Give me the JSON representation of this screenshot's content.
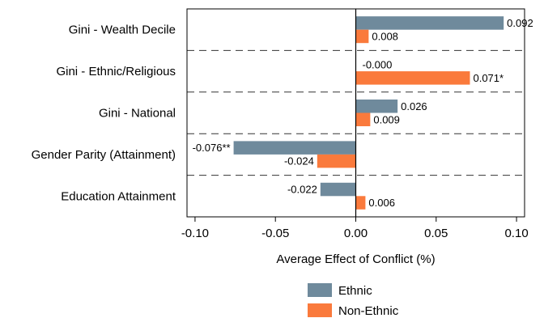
{
  "chart_data": {
    "type": "bar",
    "orientation": "horizontal",
    "categories": [
      "Gini - Wealth Decile",
      "Gini - Ethnic/Religious",
      "Gini - National",
      "Gender Parity (Attainment)",
      "Education Attainment"
    ],
    "series": [
      {
        "name": "Ethnic",
        "color": "#6f8a9c",
        "values": [
          0.092,
          -0.0001,
          0.026,
          -0.076,
          -0.022
        ],
        "labels": [
          "0.092",
          "-0.000",
          "0.026",
          "-0.076**",
          "-0.022"
        ]
      },
      {
        "name": "Non-Ethnic",
        "color": "#fa7a3c",
        "values": [
          0.008,
          0.071,
          0.009,
          -0.024,
          0.006
        ],
        "labels": [
          "0.008",
          "0.071*",
          "0.009",
          "-0.024",
          "0.006"
        ]
      }
    ],
    "xlabel": "Average Effect of Conflict (%)",
    "ylabel": "",
    "title": "",
    "xlim": [
      -0.105,
      0.105
    ],
    "xticks": [
      -0.1,
      -0.05,
      0.0,
      0.05,
      0.1
    ],
    "xtick_labels": [
      "-0.10",
      "-0.05",
      "0.00",
      "0.05",
      "0.10"
    ],
    "legend_position": "bottom",
    "grid": false
  }
}
